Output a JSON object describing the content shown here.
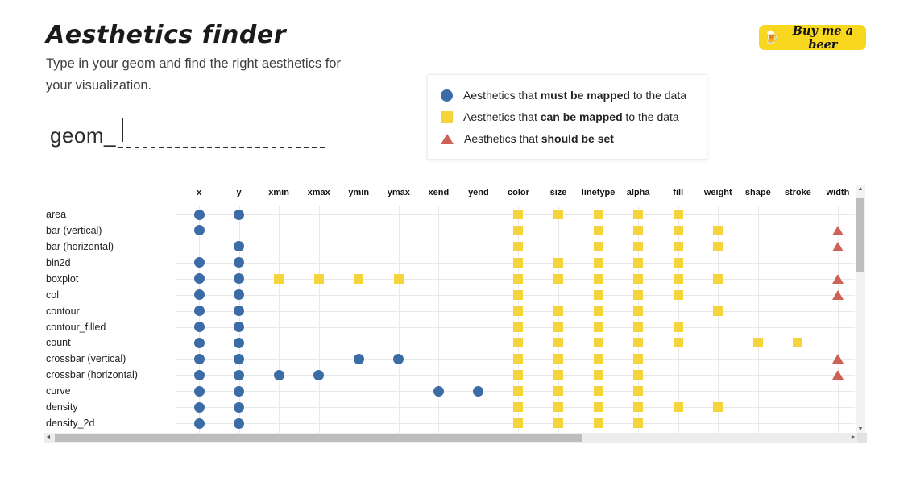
{
  "header": {
    "title": "Aesthetics finder",
    "subtitle": "Type in your geom and find the right aesthetics for your visualization.",
    "buy_button": {
      "label": "Buy me a beer",
      "icon": "🍺",
      "bg": "#f8d71f"
    }
  },
  "legend": {
    "items": [
      {
        "marker": "circle-icon",
        "prefix": "Aesthetics that ",
        "bold": "must be mapped",
        "suffix": " to the data"
      },
      {
        "marker": "square-icon",
        "prefix": "Aesthetics that ",
        "bold": "can be mapped",
        "suffix": " to the data"
      },
      {
        "marker": "triangle-icon",
        "prefix": "Aesthetics that ",
        "bold": "should be set",
        "suffix": ""
      }
    ]
  },
  "search": {
    "label": "geom_",
    "value": "",
    "placeholder": ""
  },
  "colors": {
    "must": "#3c6ca6",
    "can": "#f3d53a",
    "set": "#cd6155",
    "grid": "#e9e9e9"
  },
  "icons": {
    "scroll_up": "▲",
    "scroll_down": "▼",
    "scroll_left": "◄",
    "scroll_right": "►"
  },
  "matrix": {
    "marker_meaning": {
      "must": "circle = must be mapped",
      "can": "square = can be mapped",
      "set": "triangle = should be set"
    },
    "columns": [
      "x",
      "y",
      "xmin",
      "xmax",
      "ymin",
      "ymax",
      "xend",
      "yend",
      "color",
      "size",
      "linetype",
      "alpha",
      "fill",
      "weight",
      "shape",
      "stroke",
      "width"
    ],
    "rows": [
      {
        "label": "area",
        "must": [
          "x",
          "y"
        ],
        "can": [
          "color",
          "size",
          "linetype",
          "alpha",
          "fill"
        ],
        "set": []
      },
      {
        "label": "bar (vertical)",
        "must": [
          "x"
        ],
        "can": [
          "color",
          "linetype",
          "alpha",
          "fill",
          "weight"
        ],
        "set": [
          "width"
        ]
      },
      {
        "label": "bar (horizontal)",
        "must": [
          "y"
        ],
        "can": [
          "color",
          "linetype",
          "alpha",
          "fill",
          "weight"
        ],
        "set": [
          "width"
        ]
      },
      {
        "label": "bin2d",
        "must": [
          "x",
          "y"
        ],
        "can": [
          "color",
          "size",
          "linetype",
          "alpha",
          "fill"
        ],
        "set": []
      },
      {
        "label": "boxplot",
        "must": [
          "x",
          "y"
        ],
        "can": [
          "xmin",
          "xmax",
          "ymin",
          "ymax",
          "color",
          "size",
          "linetype",
          "alpha",
          "fill",
          "weight"
        ],
        "set": [
          "width"
        ]
      },
      {
        "label": "col",
        "must": [
          "x",
          "y"
        ],
        "can": [
          "color",
          "linetype",
          "alpha",
          "fill"
        ],
        "set": [
          "width"
        ]
      },
      {
        "label": "contour",
        "must": [
          "x",
          "y"
        ],
        "can": [
          "color",
          "size",
          "linetype",
          "alpha",
          "weight"
        ],
        "set": []
      },
      {
        "label": "contour_filled",
        "must": [
          "x",
          "y"
        ],
        "can": [
          "color",
          "size",
          "linetype",
          "alpha",
          "fill"
        ],
        "set": []
      },
      {
        "label": "count",
        "must": [
          "x",
          "y"
        ],
        "can": [
          "color",
          "size",
          "linetype",
          "alpha",
          "fill",
          "shape",
          "stroke"
        ],
        "set": []
      },
      {
        "label": "crossbar (vertical)",
        "must": [
          "x",
          "y",
          "ymin",
          "ymax"
        ],
        "can": [
          "color",
          "size",
          "linetype",
          "alpha"
        ],
        "set": [
          "width"
        ]
      },
      {
        "label": "crossbar (horizontal)",
        "must": [
          "x",
          "y",
          "xmin",
          "xmax"
        ],
        "can": [
          "color",
          "size",
          "linetype",
          "alpha"
        ],
        "set": [
          "width"
        ]
      },
      {
        "label": "curve",
        "must": [
          "x",
          "y",
          "xend",
          "yend"
        ],
        "can": [
          "color",
          "size",
          "linetype",
          "alpha"
        ],
        "set": []
      },
      {
        "label": "density",
        "must": [
          "x",
          "y"
        ],
        "can": [
          "color",
          "size",
          "linetype",
          "alpha",
          "fill",
          "weight"
        ],
        "set": []
      },
      {
        "label": "density_2d",
        "must": [
          "x",
          "y"
        ],
        "can": [
          "color",
          "size",
          "linetype",
          "alpha"
        ],
        "set": []
      }
    ]
  }
}
